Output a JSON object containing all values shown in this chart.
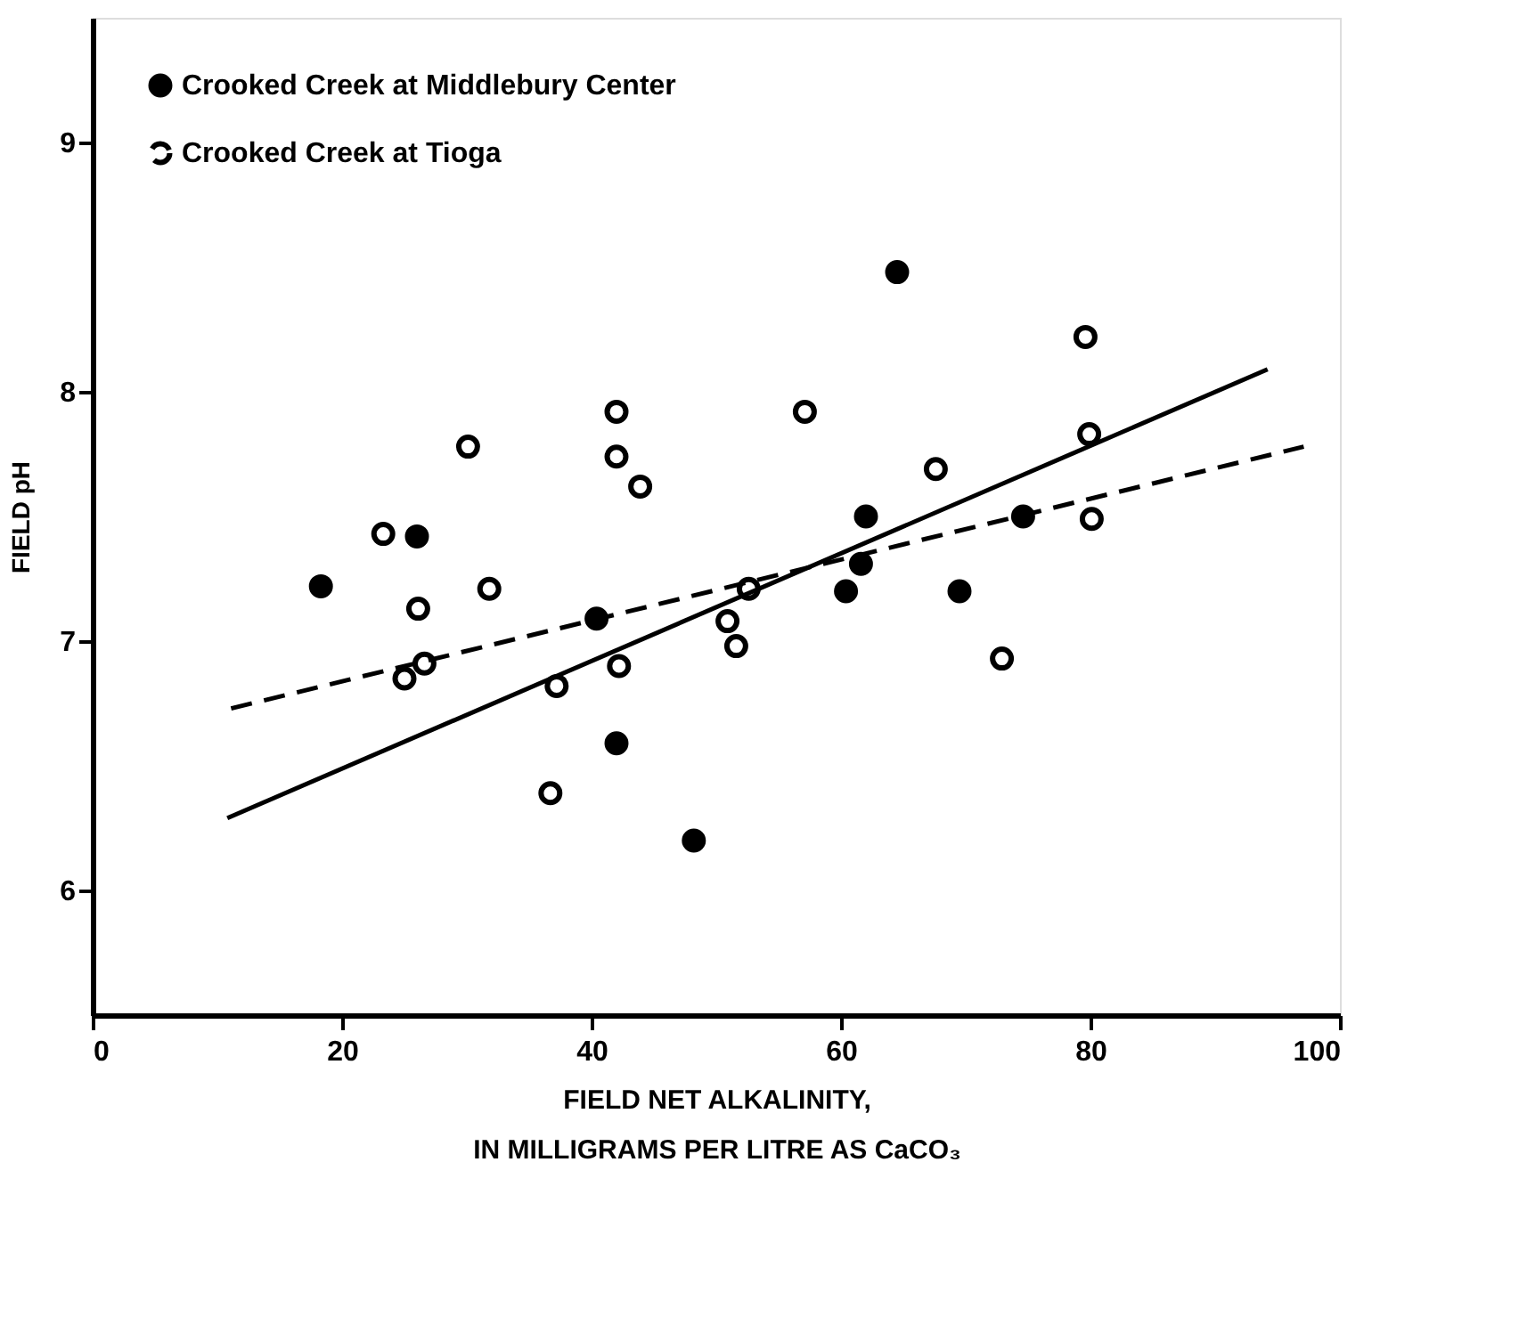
{
  "chart_data": {
    "type": "scatter",
    "xlabel": "FIELD NET ALKALINITY,\nIN MILLIGRAMS PER LITRE AS CaCO₃",
    "ylabel": "FIELD pH",
    "xlim": [
      0,
      100
    ],
    "xticks": [
      0,
      20,
      40,
      60,
      80,
      100
    ],
    "ylim": [
      5.5,
      9.5
    ],
    "yticks": [
      6,
      7,
      8,
      9
    ],
    "grid": false,
    "legend": "top left",
    "marker": "circle",
    "series": [
      {
        "name": "Crooked Creek at Middlebury Center",
        "color": "#000000",
        "x": [
          18.3,
          26.0,
          40.4,
          42.0,
          48.2,
          64.5,
          62.0,
          74.6,
          61.6,
          60.4,
          69.5
        ],
        "values": [
          7.22,
          7.42,
          7.09,
          6.59,
          6.2,
          8.48,
          7.5,
          7.5,
          7.31,
          7.2,
          7.2
        ]
      },
      {
        "name": "Crooked Creek at Tioga",
        "color": "#000000",
        "x": [
          23.3,
          30.1,
          42.0,
          42.0,
          43.9,
          31.8,
          26.1,
          26.6,
          25.0,
          37.2,
          42.2,
          36.7,
          50.9,
          51.6,
          79.6,
          57.1,
          79.9,
          67.6,
          80.1,
          52.6,
          72.9
        ],
        "values": [
          7.43,
          7.78,
          7.92,
          7.74,
          7.62,
          7.21,
          7.13,
          6.91,
          6.85,
          6.82,
          6.9,
          6.39,
          7.08,
          6.98,
          8.22,
          7.92,
          7.83,
          7.69,
          7.49,
          7.21,
          6.93
        ]
      },
      {
        "type": "line",
        "marker": "none",
        "line_style": "solid",
        "color": "#000000",
        "x": [
          10.8,
          94.2
        ],
        "values": [
          6.29,
          8.09
        ]
      },
      {
        "type": "line",
        "marker": "none",
        "line_style": "dashed",
        "color": "#000000",
        "x": [
          11.1,
          97.1
        ],
        "values": [
          6.73,
          7.78
        ]
      }
    ]
  }
}
